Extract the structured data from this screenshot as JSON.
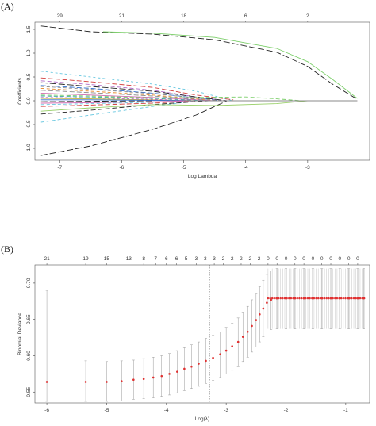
{
  "figure": {
    "panel_a_label": "(A)",
    "panel_b_label": "(B)"
  },
  "chart_data": [
    {
      "type": "line",
      "panel": "(A)",
      "title": "",
      "xlabel": "Log Lambda",
      "ylabel": "Coefficients",
      "xlim": [
        -7.4,
        -2.0
      ],
      "ylim": [
        -1.25,
        1.65
      ],
      "x_ticks": [
        -7,
        -6,
        -5,
        -4,
        -3
      ],
      "y_ticks": [
        -1.0,
        -0.5,
        0.0,
        0.5,
        1.0,
        1.5
      ],
      "x_tick_labels": [
        "-7",
        "-6",
        "-5",
        "-4",
        "-3"
      ],
      "y_tick_labels": [
        "-1.0",
        "-0.5",
        "0.0",
        "0.5",
        "1.0",
        "1.5"
      ],
      "top_axis": {
        "ticks": [
          -7.0,
          -6.0,
          -5.0,
          -4.0,
          -3.0
        ],
        "labels": [
          "29",
          "21",
          "18",
          "6",
          "2"
        ]
      },
      "grid": false,
      "series": [
        {
          "color": "#222222",
          "dash": "8,3",
          "points": [
            [
              -7.3,
              1.57
            ],
            [
              -6.5,
              1.45
            ],
            [
              -5.5,
              1.4
            ],
            [
              -4.5,
              1.28
            ],
            [
              -3.5,
              1.02
            ],
            [
              -3.0,
              0.72
            ],
            [
              -2.6,
              0.35
            ],
            [
              -2.2,
              0.03
            ]
          ]
        },
        {
          "color": "#7dcf6b",
          "dash": "",
          "points": [
            [
              -6.3,
              1.45
            ],
            [
              -5.5,
              1.42
            ],
            [
              -4.5,
              1.33
            ],
            [
              -3.5,
              1.1
            ],
            [
              -3.0,
              0.82
            ],
            [
              -2.6,
              0.45
            ],
            [
              -2.2,
              0.05
            ]
          ]
        },
        {
          "color": "#222222",
          "dash": "8,3",
          "points": [
            [
              -7.3,
              -1.15
            ],
            [
              -6.5,
              -0.95
            ],
            [
              -5.5,
              -0.6
            ],
            [
              -4.8,
              -0.3
            ],
            [
              -4.3,
              0.0
            ]
          ]
        },
        {
          "color": "#66c7e0",
          "dash": "4,3",
          "points": [
            [
              -7.3,
              -0.45
            ],
            [
              -6.5,
              -0.3
            ],
            [
              -5.5,
              -0.12
            ],
            [
              -4.8,
              0.0
            ]
          ]
        },
        {
          "color": "#222222",
          "dash": "6,3",
          "points": [
            [
              -7.3,
              -0.28
            ],
            [
              -6.5,
              -0.2
            ],
            [
              -5.5,
              -0.08
            ],
            [
              -4.6,
              0.0
            ]
          ]
        },
        {
          "color": "#9ad06a",
          "dash": "",
          "points": [
            [
              -7.3,
              -0.22
            ],
            [
              -6.5,
              -0.15
            ],
            [
              -5.5,
              -0.08
            ],
            [
              -4.5,
              -0.1
            ],
            [
              -3.5,
              -0.06
            ],
            [
              -3.0,
              0.0
            ]
          ]
        },
        {
          "color": "#66c7e0",
          "dash": "3,3",
          "points": [
            [
              -7.3,
              0.62
            ],
            [
              -6.5,
              0.5
            ],
            [
              -5.5,
              0.35
            ],
            [
              -4.8,
              0.2
            ],
            [
              -4.2,
              0.0
            ]
          ]
        },
        {
          "color": "#d33c3c",
          "dash": "6,3",
          "points": [
            [
              -7.3,
              0.48
            ],
            [
              -6.5,
              0.4
            ],
            [
              -5.5,
              0.28
            ],
            [
              -4.8,
              0.12
            ],
            [
              -4.2,
              0.02
            ]
          ]
        },
        {
          "color": "#b067c9",
          "dash": "5,3",
          "points": [
            [
              -7.3,
              0.42
            ],
            [
              -6.5,
              0.34
            ],
            [
              -5.5,
              0.22
            ],
            [
              -4.8,
              0.08
            ],
            [
              -4.3,
              0.0
            ]
          ]
        },
        {
          "color": "#222222",
          "dash": "8,3",
          "points": [
            [
              -7.3,
              0.38
            ],
            [
              -6.5,
              0.3
            ],
            [
              -5.5,
              0.2
            ],
            [
              -4.8,
              0.08
            ],
            [
              -4.3,
              0.0
            ]
          ]
        },
        {
          "color": "#2f6fd0",
          "dash": "6,3",
          "points": [
            [
              -7.3,
              0.32
            ],
            [
              -6.5,
              0.26
            ],
            [
              -5.5,
              0.16
            ],
            [
              -4.8,
              0.06
            ],
            [
              -4.4,
              0.0
            ]
          ]
        },
        {
          "color": "#e88a2c",
          "dash": "4,3",
          "points": [
            [
              -7.3,
              0.26
            ],
            [
              -6.5,
              0.2
            ],
            [
              -5.5,
              0.12
            ],
            [
              -4.8,
              0.04
            ],
            [
              -4.5,
              0.0
            ]
          ]
        },
        {
          "color": "#888888",
          "dash": "6,3",
          "points": [
            [
              -7.3,
              0.22
            ],
            [
              -6.5,
              0.17
            ],
            [
              -5.5,
              0.1
            ],
            [
              -4.8,
              0.03
            ],
            [
              -4.5,
              0.0
            ]
          ]
        },
        {
          "color": "#d06ab0",
          "dash": "",
          "points": [
            [
              -7.3,
              0.16
            ],
            [
              -6.5,
              0.12
            ],
            [
              -5.5,
              0.07
            ],
            [
              -4.8,
              0.02
            ],
            [
              -4.5,
              0.0
            ]
          ]
        },
        {
          "color": "#3aa6a0",
          "dash": "5,3",
          "points": [
            [
              -7.3,
              0.1
            ],
            [
              -6.5,
              0.08
            ],
            [
              -5.5,
              0.05
            ],
            [
              -4.8,
              0.01
            ],
            [
              -4.6,
              0.0
            ]
          ]
        },
        {
          "color": "#c2b23a",
          "dash": "",
          "points": [
            [
              -7.3,
              0.05
            ],
            [
              -6.5,
              0.04
            ],
            [
              -5.5,
              0.02
            ],
            [
              -4.8,
              0.0
            ]
          ]
        },
        {
          "color": "#66c7e0",
          "dash": "4,3",
          "points": [
            [
              -7.3,
              -0.08
            ],
            [
              -6.5,
              -0.06
            ],
            [
              -5.5,
              -0.03
            ],
            [
              -4.8,
              0.0
            ]
          ]
        },
        {
          "color": "#d33c3c",
          "dash": "6,3",
          "points": [
            [
              -7.3,
              -0.12
            ],
            [
              -6.5,
              -0.09
            ],
            [
              -5.5,
              -0.05
            ],
            [
              -4.8,
              0.0
            ]
          ]
        },
        {
          "color": "#222222",
          "dash": "8,3",
          "points": [
            [
              -7.3,
              -0.02
            ],
            [
              -6.5,
              -0.01
            ],
            [
              -5.5,
              0.0
            ]
          ]
        },
        {
          "color": "#2f6fd0",
          "dash": "",
          "points": [
            [
              -7.3,
              0.02
            ],
            [
              -6.5,
              0.02
            ],
            [
              -5.5,
              0.01
            ],
            [
              -4.8,
              0.0
            ]
          ]
        },
        {
          "color": "#b067c9",
          "dash": "3,3",
          "points": [
            [
              -7.3,
              0.07
            ],
            [
              -6.5,
              0.06
            ],
            [
              -5.5,
              0.03
            ],
            [
              -4.8,
              0.0
            ]
          ]
        },
        {
          "color": "#7dcf6b",
          "dash": "5,3",
          "points": [
            [
              -7.3,
              0.12
            ],
            [
              -6.5,
              0.1
            ],
            [
              -5.5,
              0.06
            ],
            [
              -4.0,
              0.08
            ],
            [
              -3.5,
              0.04
            ],
            [
              -3.1,
              0.0
            ]
          ]
        },
        {
          "color": "#d06ab0",
          "dash": "",
          "points": [
            [
              -7.3,
              -0.05
            ],
            [
              -6.5,
              -0.04
            ],
            [
              -5.5,
              -0.02
            ],
            [
              -4.8,
              0.0
            ]
          ]
        },
        {
          "color": "#888888",
          "dash": "4,3",
          "points": [
            [
              -7.3,
              0.3
            ],
            [
              -6.5,
              0.24
            ],
            [
              -5.5,
              0.15
            ],
            [
              -4.8,
              0.06
            ],
            [
              -4.4,
              0.0
            ]
          ]
        },
        {
          "color": "#d06ab0",
          "dash": "",
          "points": [
            [
              -4.8,
              0.0
            ],
            [
              -4.0,
              0.0
            ],
            [
              -3.0,
              0.0
            ],
            [
              -2.2,
              0.0
            ]
          ]
        },
        {
          "color": "#888888",
          "dash": "",
          "points": [
            [
              -5.0,
              0.0
            ],
            [
              -3.0,
              0.0
            ],
            [
              -2.2,
              0.0
            ]
          ]
        }
      ]
    },
    {
      "type": "scatter",
      "panel": "(B)",
      "title": "",
      "xlabel": "Log(λ)",
      "ylabel": "Binomial Deviance",
      "xlim": [
        -6.2,
        -0.6
      ],
      "ylim": [
        0.535,
        0.725
      ],
      "x_ticks": [
        -6,
        -5,
        -4,
        -3,
        -2,
        -1
      ],
      "y_ticks": [
        0.55,
        0.6,
        0.65,
        0.7
      ],
      "x_tick_labels": [
        "-6",
        "-5",
        "-4",
        "-3",
        "-2",
        "-1"
      ],
      "y_tick_labels": [
        "0.55",
        "0.60",
        "0.65",
        "0.70"
      ],
      "top_axis": {
        "ticks": [
          -6.0,
          -5.35,
          -5.0,
          -4.63,
          -4.38,
          -4.18,
          -4.0,
          -3.83,
          -3.67,
          -3.5,
          -3.35,
          -3.2,
          -3.05,
          -2.9,
          -2.75,
          -2.6,
          -2.45,
          -2.3,
          -2.15,
          -2.0,
          -1.85,
          -1.7,
          -1.55,
          -1.4,
          -1.25,
          -1.1,
          -0.95,
          -0.8
        ],
        "labels": [
          "21",
          "19",
          "15",
          "13",
          "8",
          "7",
          "6",
          "6",
          "5",
          "3",
          "3",
          "3",
          "2",
          "2",
          "2",
          "2",
          "2",
          "0",
          "0",
          "0",
          "0",
          "0",
          "0",
          "0",
          "0",
          "0",
          "0",
          "0"
        ]
      },
      "grid": false,
      "lambda_min_line": -3.28,
      "points": [
        {
          "x": -6.0,
          "y": 0.564,
          "ymin": 0.44,
          "ymax": 0.69
        },
        {
          "x": -5.35,
          "y": 0.564,
          "ymin": 0.535,
          "ymax": 0.593
        },
        {
          "x": -5.0,
          "y": 0.564,
          "ymin": 0.537,
          "ymax": 0.592
        },
        {
          "x": -4.75,
          "y": 0.565,
          "ymin": 0.538,
          "ymax": 0.593
        },
        {
          "x": -4.55,
          "y": 0.567,
          "ymin": 0.54,
          "ymax": 0.594
        },
        {
          "x": -4.38,
          "y": 0.568,
          "ymin": 0.541,
          "ymax": 0.596
        },
        {
          "x": -4.22,
          "y": 0.57,
          "ymin": 0.542,
          "ymax": 0.598
        },
        {
          "x": -4.08,
          "y": 0.572,
          "ymin": 0.544,
          "ymax": 0.6
        },
        {
          "x": -3.95,
          "y": 0.575,
          "ymin": 0.546,
          "ymax": 0.603
        },
        {
          "x": -3.82,
          "y": 0.578,
          "ymin": 0.549,
          "ymax": 0.607
        },
        {
          "x": -3.7,
          "y": 0.582,
          "ymin": 0.552,
          "ymax": 0.611
        },
        {
          "x": -3.58,
          "y": 0.585,
          "ymin": 0.555,
          "ymax": 0.615
        },
        {
          "x": -3.46,
          "y": 0.589,
          "ymin": 0.558,
          "ymax": 0.619
        },
        {
          "x": -3.34,
          "y": 0.593,
          "ymin": 0.562,
          "ymax": 0.624
        },
        {
          "x": -3.22,
          "y": 0.597,
          "ymin": 0.566,
          "ymax": 0.628
        },
        {
          "x": -3.1,
          "y": 0.602,
          "ymin": 0.57,
          "ymax": 0.633
        },
        {
          "x": -3.0,
          "y": 0.607,
          "ymin": 0.575,
          "ymax": 0.639
        },
        {
          "x": -2.9,
          "y": 0.613,
          "ymin": 0.58,
          "ymax": 0.645
        },
        {
          "x": -2.8,
          "y": 0.619,
          "ymin": 0.586,
          "ymax": 0.652
        },
        {
          "x": -2.72,
          "y": 0.626,
          "ymin": 0.592,
          "ymax": 0.66
        },
        {
          "x": -2.64,
          "y": 0.633,
          "ymin": 0.598,
          "ymax": 0.668
        },
        {
          "x": -2.57,
          "y": 0.641,
          "ymin": 0.605,
          "ymax": 0.677
        },
        {
          "x": -2.5,
          "y": 0.649,
          "ymin": 0.612,
          "ymax": 0.686
        },
        {
          "x": -2.44,
          "y": 0.657,
          "ymin": 0.619,
          "ymax": 0.695
        },
        {
          "x": -2.38,
          "y": 0.665,
          "ymin": 0.626,
          "ymax": 0.704
        },
        {
          "x": -2.32,
          "y": 0.673,
          "ymin": 0.633,
          "ymax": 0.712
        },
        {
          "x": -2.25,
          "y": 0.677,
          "ymin": 0.636,
          "ymax": 0.717
        },
        {
          "x": -2.15,
          "y": 0.679,
          "ymin": 0.637,
          "ymax": 0.72
        },
        {
          "x": -2.0,
          "y": 0.679,
          "ymin": 0.637,
          "ymax": 0.72
        },
        {
          "x": -1.85,
          "y": 0.679,
          "ymin": 0.637,
          "ymax": 0.72
        },
        {
          "x": -1.7,
          "y": 0.679,
          "ymin": 0.637,
          "ymax": 0.72
        },
        {
          "x": -1.55,
          "y": 0.679,
          "ymin": 0.637,
          "ymax": 0.72
        },
        {
          "x": -1.4,
          "y": 0.679,
          "ymin": 0.637,
          "ymax": 0.72
        },
        {
          "x": -1.25,
          "y": 0.679,
          "ymin": 0.637,
          "ymax": 0.72
        },
        {
          "x": -1.1,
          "y": 0.679,
          "ymin": 0.637,
          "ymax": 0.72
        },
        {
          "x": -0.95,
          "y": 0.679,
          "ymin": 0.637,
          "ymax": 0.72
        },
        {
          "x": -0.8,
          "y": 0.679,
          "ymin": 0.637,
          "ymax": 0.72
        },
        {
          "x": -0.7,
          "y": 0.679,
          "ymin": 0.637,
          "ymax": 0.72
        }
      ],
      "point_color": "#e03030"
    }
  ]
}
